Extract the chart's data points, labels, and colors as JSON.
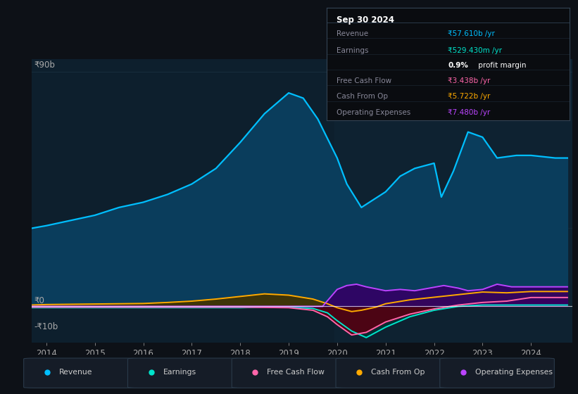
{
  "bg_color": "#0d1117",
  "plot_bg_color": "#0d1f2d",
  "ylabel_top": "₹90b",
  "ylabel_zero": "₹0",
  "ylabel_neg": "-₹10b",
  "x_ticks": [
    "2014",
    "2015",
    "2016",
    "2017",
    "2018",
    "2019",
    "2020",
    "2021",
    "2022",
    "2023",
    "2024"
  ],
  "x_tick_pos": [
    2014,
    2015,
    2016,
    2017,
    2018,
    2019,
    2020,
    2021,
    2022,
    2023,
    2024
  ],
  "legend": [
    {
      "label": "Revenue",
      "color": "#00bfff"
    },
    {
      "label": "Earnings",
      "color": "#00e5cc"
    },
    {
      "label": "Free Cash Flow",
      "color": "#ff66aa"
    },
    {
      "label": "Cash From Op",
      "color": "#ffaa00"
    },
    {
      "label": "Operating Expenses",
      "color": "#bb44ff"
    }
  ],
  "tooltip_date": "Sep 30 2024",
  "tooltip_rows": [
    {
      "label": "Revenue",
      "value": "₹57.610b /yr",
      "vc": "#00bfff",
      "label_color": "#888899"
    },
    {
      "label": "Earnings",
      "value": "₹529.430m /yr",
      "vc": "#00e5cc",
      "label_color": "#888899"
    },
    {
      "label": "",
      "value": "0.9% profit margin",
      "vc": "#ffffff",
      "label_color": "#888899",
      "bold_prefix": "0.9%",
      "suffix": " profit margin"
    },
    {
      "label": "Free Cash Flow",
      "value": "₹3.438b /yr",
      "vc": "#ff66aa",
      "label_color": "#888899"
    },
    {
      "label": "Cash From Op",
      "value": "₹5.722b /yr",
      "vc": "#ffaa00",
      "label_color": "#888899"
    },
    {
      "label": "Operating Expenses",
      "value": "₹7.480b /yr",
      "vc": "#bb44ff",
      "label_color": "#888899"
    }
  ],
  "revenue_x": [
    2013.7,
    2014.0,
    2014.5,
    2015.0,
    2015.5,
    2016.0,
    2016.5,
    2017.0,
    2017.5,
    2018.0,
    2018.5,
    2019.0,
    2019.3,
    2019.6,
    2020.0,
    2020.2,
    2020.5,
    2021.0,
    2021.3,
    2021.6,
    2022.0,
    2022.15,
    2022.4,
    2022.7,
    2023.0,
    2023.3,
    2023.7,
    2024.0,
    2024.5,
    2024.75
  ],
  "revenue_y": [
    30,
    31,
    33,
    35,
    38,
    40,
    43,
    47,
    53,
    63,
    74,
    82,
    80,
    72,
    57,
    47,
    38,
    44,
    50,
    53,
    55,
    42,
    52,
    67,
    65,
    57,
    58,
    58,
    57,
    57
  ],
  "earnings_x": [
    2013.7,
    2014.0,
    2015.0,
    2016.0,
    2017.0,
    2018.0,
    2018.5,
    2019.0,
    2019.5,
    2019.8,
    2020.0,
    2020.3,
    2020.6,
    2021.0,
    2021.5,
    2022.0,
    2022.5,
    2023.0,
    2023.5,
    2024.0,
    2024.5,
    2024.75
  ],
  "earnings_y": [
    -0.5,
    -0.5,
    -0.5,
    -0.5,
    -0.5,
    -0.5,
    -0.3,
    -0.3,
    -0.8,
    -2.5,
    -5.5,
    -9.5,
    -12,
    -8,
    -4,
    -1.5,
    0,
    0.5,
    0.5,
    0.5,
    0.5,
    0.5
  ],
  "fcf_x": [
    2013.7,
    2014.0,
    2015.0,
    2016.0,
    2017.0,
    2018.0,
    2019.0,
    2019.5,
    2019.8,
    2020.0,
    2020.3,
    2020.6,
    2021.0,
    2021.5,
    2022.0,
    2022.5,
    2023.0,
    2023.5,
    2024.0,
    2024.5,
    2024.75
  ],
  "fcf_y": [
    -0.3,
    -0.3,
    -0.3,
    -0.3,
    -0.3,
    -0.3,
    -0.5,
    -1.5,
    -4,
    -7,
    -11,
    -10,
    -6,
    -3,
    -1,
    0.5,
    1.5,
    2,
    3.4,
    3.4,
    3.4
  ],
  "cfo_x": [
    2013.7,
    2014.0,
    2015.0,
    2016.0,
    2016.5,
    2017.0,
    2017.5,
    2018.0,
    2018.5,
    2019.0,
    2019.5,
    2019.8,
    2020.0,
    2020.3,
    2020.5,
    2020.8,
    2021.0,
    2021.5,
    2022.0,
    2022.5,
    2023.0,
    2023.5,
    2024.0,
    2024.5,
    2024.75
  ],
  "cfo_y": [
    0.5,
    0.7,
    0.9,
    1.1,
    1.5,
    2.0,
    2.8,
    3.8,
    4.8,
    4.3,
    2.8,
    1.0,
    -0.5,
    -2.0,
    -1.5,
    -0.3,
    1.0,
    2.5,
    3.5,
    4.5,
    5.5,
    5.2,
    5.7,
    5.7,
    5.7
  ],
  "ope_x": [
    2013.7,
    2019.7,
    2020.0,
    2020.2,
    2020.4,
    2020.6,
    2021.0,
    2021.3,
    2021.6,
    2021.9,
    2022.2,
    2022.5,
    2022.7,
    2023.0,
    2023.3,
    2023.6,
    2024.0,
    2024.5,
    2024.75
  ],
  "ope_y": [
    0.0,
    0.0,
    6.5,
    8.0,
    8.5,
    7.5,
    6.0,
    6.5,
    6.0,
    7.0,
    8.0,
    7.0,
    6.0,
    6.5,
    8.5,
    7.5,
    7.5,
    7.5,
    7.5
  ],
  "ylim": [
    -14,
    95
  ],
  "xlim": [
    2013.7,
    2024.85
  ],
  "zero_y": 0,
  "y90": 90,
  "y_neg10": -10
}
